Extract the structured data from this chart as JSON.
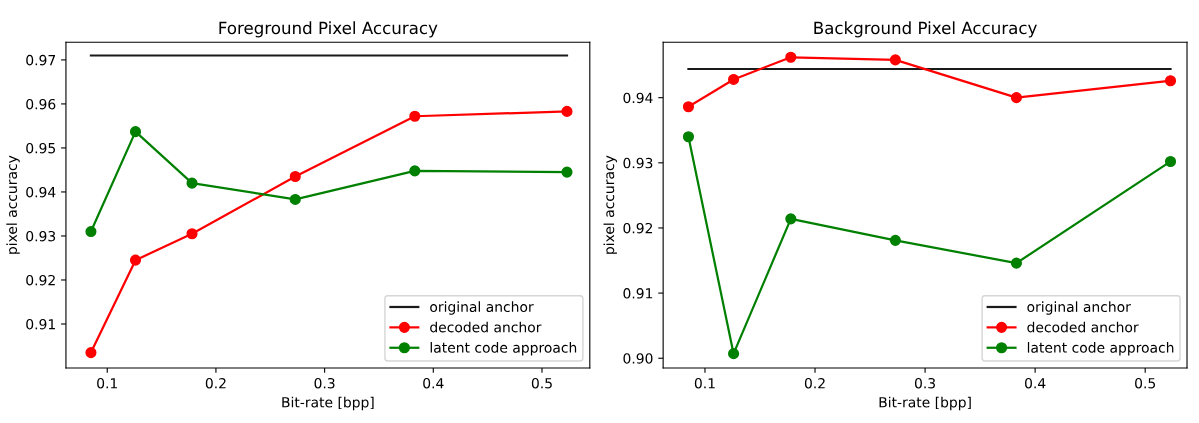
{
  "chart_data": [
    {
      "type": "line",
      "title": "Foreground Pixel Accuracy",
      "xlabel": "Bit-rate [bpp]",
      "ylabel": "pixel accuracy",
      "xlim": [
        0.062,
        0.544
      ],
      "ylim": [
        0.9,
        0.974
      ],
      "xticks": [
        0.1,
        0.2,
        0.3,
        0.4,
        0.5
      ],
      "yticks": [
        0.91,
        0.92,
        0.93,
        0.94,
        0.95,
        0.96,
        0.97
      ],
      "grid": false,
      "legend": "bottom right",
      "x": [
        0.085,
        0.126,
        0.178,
        0.273,
        0.383,
        0.523
      ],
      "series": [
        {
          "name": "original anchor",
          "color": "#1a1a1a",
          "marker": "none",
          "values": [
            0.971,
            0.971,
            0.971,
            0.971,
            0.971,
            0.971
          ]
        },
        {
          "name": "decoded anchor",
          "color": "#ff0000",
          "marker": "circle",
          "values": [
            0.9035,
            0.9245,
            0.9305,
            0.9435,
            0.9572,
            0.9583
          ]
        },
        {
          "name": "latent code approach",
          "color": "#008000",
          "marker": "circle",
          "values": [
            0.931,
            0.9537,
            0.942,
            0.9383,
            0.9448,
            0.9445
          ]
        }
      ]
    },
    {
      "type": "line",
      "title": "Background Pixel Accuracy",
      "xlabel": "Bit-rate [bpp]",
      "ylabel": "pixel accuracy",
      "xlim": [
        0.062,
        0.538
      ],
      "ylim": [
        0.8985,
        0.9485
      ],
      "xticks": [
        0.1,
        0.2,
        0.3,
        0.4,
        0.5
      ],
      "yticks": [
        {
          "value": 0.9,
          "label": "0.90"
        },
        0.91,
        0.92,
        0.93,
        0.94
      ],
      "grid": false,
      "legend": "bottom right",
      "x": [
        0.085,
        0.126,
        0.178,
        0.273,
        0.383,
        0.523
      ],
      "series": [
        {
          "name": "original anchor",
          "color": "#1a1a1a",
          "marker": "none",
          "values": [
            0.9444,
            0.9444,
            0.9444,
            0.9444,
            0.9444,
            0.9444
          ]
        },
        {
          "name": "decoded anchor",
          "color": "#ff0000",
          "marker": "circle",
          "values": [
            0.9386,
            0.9428,
            0.9462,
            0.9458,
            0.94,
            0.9426
          ]
        },
        {
          "name": "latent code approach",
          "color": "#008000",
          "marker": "circle",
          "values": [
            0.934,
            0.9007,
            0.9214,
            0.9181,
            0.9146,
            0.9302
          ]
        }
      ]
    }
  ]
}
